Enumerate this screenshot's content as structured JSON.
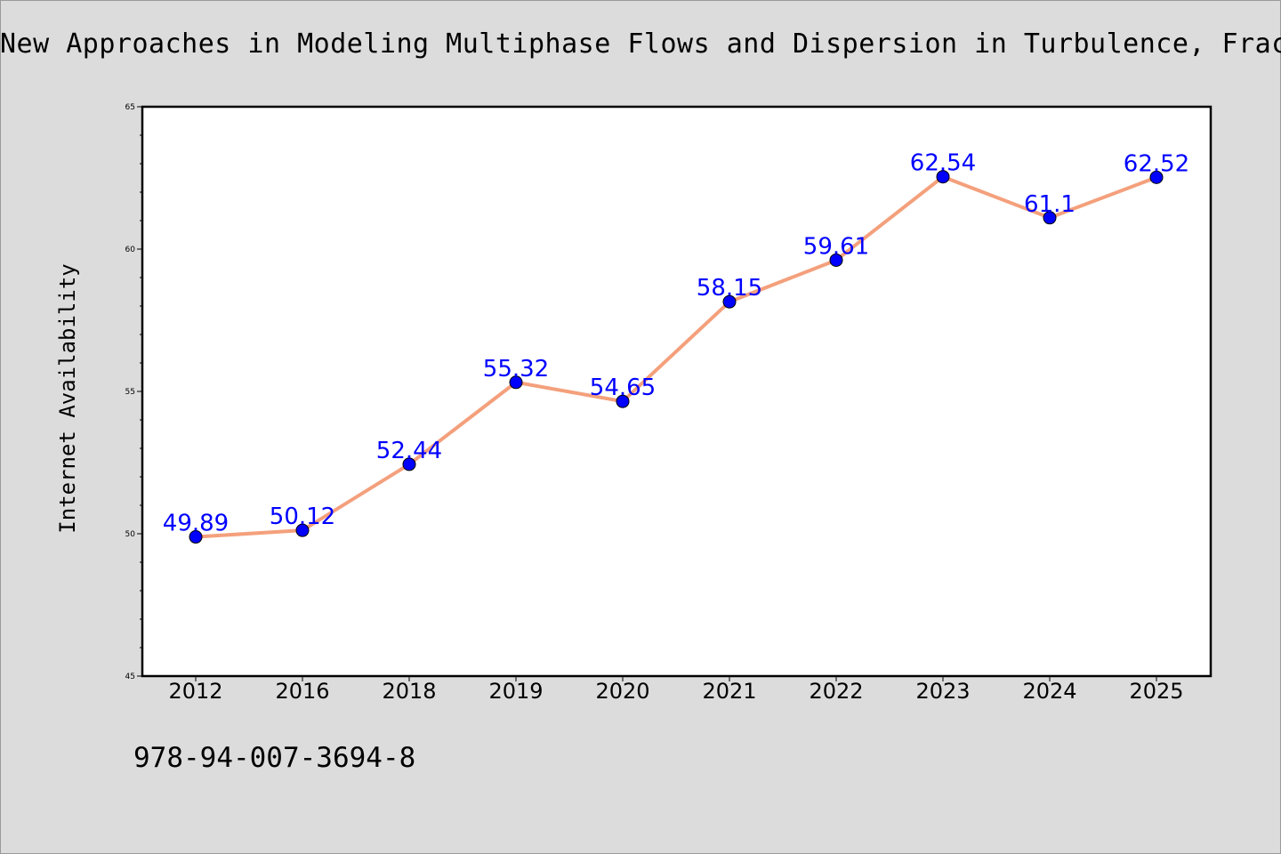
{
  "chart_data": {
    "type": "line",
    "title": "New Approaches in Modeling Multiphase Flows and Dispersion in Turbulence, Fracta",
    "xlabel": "",
    "ylabel": "Internet Availability",
    "categories": [
      "2012",
      "2016",
      "2018",
      "2019",
      "2020",
      "2021",
      "2022",
      "2023",
      "2024",
      "2025"
    ],
    "series": [
      {
        "values": [
          49.89,
          50.12,
          52.44,
          55.32,
          54.65,
          58.15,
          59.61,
          62.54,
          61.1,
          62.52
        ],
        "labels": [
          "49.89",
          "50.12",
          "52.44",
          "55.32",
          "54.65",
          "58.15",
          "59.61",
          "62.54",
          "61.1",
          "62.52"
        ],
        "line_color": "#f4a07c",
        "marker_color": "#0000ff"
      }
    ],
    "ylim": [
      45,
      65
    ],
    "yticks": [
      "45",
      "50",
      "55",
      "60",
      "65"
    ],
    "grid": false,
    "legend": "none"
  },
  "footer": {
    "isbn": "978-94-007-3694-8"
  }
}
